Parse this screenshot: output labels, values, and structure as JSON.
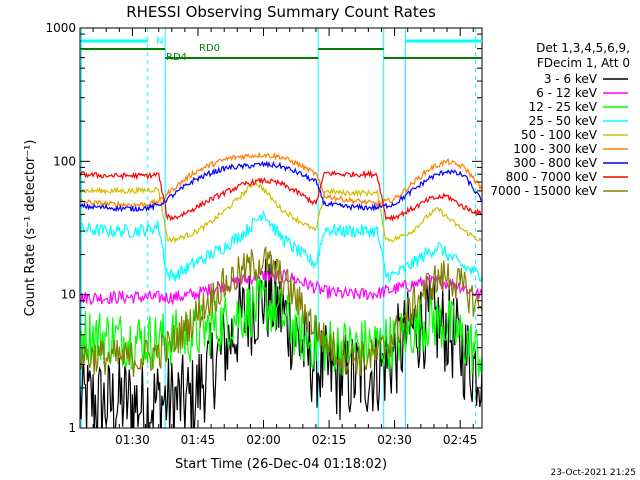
{
  "chart_data": {
    "type": "line",
    "title": "RHESSI Observing Summary Count Rates",
    "xlabel": "Start Time (26-Dec-04 01:18:02)",
    "ylabel": "Count Rate (s⁻¹ detector⁻¹)",
    "x_ticks": [
      "01:30",
      "01:45",
      "02:00",
      "02:15",
      "02:30",
      "02:45"
    ],
    "y_ticks": [
      "1",
      "10",
      "100",
      "1000"
    ],
    "y_scale": "log",
    "ylim": [
      1,
      1000
    ],
    "xlim_minutes": [
      78,
      170
    ],
    "grid": false,
    "legend_position": "right",
    "legend_header": [
      "Det 1,3,4,5,6,9,",
      "FDecim 1, Att 0"
    ],
    "footer_date": "23-Oct-2021 21:25",
    "flags": [
      {
        "label": "N",
        "color": "#00ffff"
      },
      {
        "label": "RD0",
        "color": "#008000"
      },
      {
        "label": "RD4",
        "color": "#008000"
      }
    ],
    "series": [
      {
        "name": "3 - 6 keV",
        "color": "#000000",
        "x": [
          78,
          80,
          84,
          88,
          92,
          96,
          100,
          104,
          106,
          110,
          115,
          120,
          122,
          126,
          130,
          134,
          136,
          140,
          144,
          148,
          150,
          154,
          158,
          162,
          164,
          166,
          168,
          170
        ],
        "y": [
          1.6,
          1.6,
          1.5,
          1.6,
          1.5,
          1.6,
          1.6,
          1.6,
          2.3,
          3.5,
          6.5,
          9.5,
          9.0,
          6.0,
          3.5,
          2.7,
          2.5,
          2.4,
          2.6,
          3.0,
          3.6,
          5.5,
          6.5,
          5.5,
          4.5,
          3.5,
          3.0,
          2.7
        ]
      },
      {
        "name": "6 - 12 keV",
        "color": "#ff00ff",
        "x": [
          78,
          84,
          90,
          96,
          100,
          104,
          110,
          116,
          120,
          126,
          130,
          134,
          140,
          146,
          150,
          156,
          160,
          164,
          168,
          170
        ],
        "y": [
          9.5,
          9.5,
          9.6,
          9.5,
          9.6,
          10.0,
          11.5,
          13.0,
          14.0,
          13.5,
          12.0,
          10.5,
          10.0,
          10.2,
          11.0,
          12.3,
          12.5,
          12.0,
          10.5,
          9.8
        ]
      },
      {
        "name": "12 - 25 keV",
        "color": "#00ff00",
        "x": [
          78,
          84,
          90,
          96,
          100,
          104,
          110,
          116,
          120,
          122,
          126,
          130,
          134,
          140,
          146,
          150,
          154,
          158,
          162,
          166,
          170
        ],
        "y": [
          5.0,
          4.8,
          4.6,
          4.5,
          4.8,
          5.0,
          6.0,
          7.5,
          8.5,
          8.0,
          6.0,
          4.5,
          4.2,
          4.0,
          4.2,
          4.5,
          5.5,
          6.5,
          6.0,
          4.5,
          3.5
        ]
      },
      {
        "name": "25 - 50 keV",
        "color": "#00ffff",
        "x": [
          78,
          84,
          90,
          94,
          96,
          98,
          100,
          104,
          108,
          112,
          116,
          118,
          120,
          122,
          124,
          128,
          132,
          134,
          138,
          142,
          146,
          148,
          150,
          154,
          158,
          160,
          162,
          166,
          170
        ],
        "y": [
          31,
          30,
          30,
          31,
          33,
          14,
          14,
          17,
          20,
          24,
          30,
          35,
          42,
          33,
          27,
          21,
          17,
          31,
          30,
          30,
          30,
          14,
          14,
          17,
          21,
          23,
          20,
          16,
          14
        ]
      },
      {
        "name": "50 - 100 keV",
        "color": "#d0c000",
        "x": [
          78,
          84,
          90,
          94,
          96,
          98,
          100,
          104,
          108,
          112,
          116,
          118,
          120,
          122,
          124,
          128,
          132,
          134,
          138,
          142,
          146,
          148,
          150,
          154,
          158,
          160,
          162,
          166,
          170
        ],
        "y": [
          60,
          60,
          60,
          61,
          62,
          26,
          26,
          29,
          35,
          45,
          60,
          70,
          62,
          52,
          44,
          36,
          30,
          60,
          58,
          58,
          58,
          26,
          26,
          30,
          40,
          44,
          38,
          30,
          25
        ]
      },
      {
        "name": "100 - 300 keV",
        "color": "#ff8000",
        "x": [
          78,
          84,
          90,
          94,
          96,
          100,
          104,
          108,
          112,
          116,
          120,
          124,
          128,
          132,
          134,
          138,
          142,
          146,
          150,
          154,
          158,
          162,
          166,
          170
        ],
        "y": [
          50,
          48,
          47,
          48,
          50,
          65,
          82,
          95,
          105,
          110,
          112,
          108,
          95,
          80,
          55,
          52,
          50,
          48,
          52,
          68,
          88,
          100,
          90,
          62
        ]
      },
      {
        "name": "300 - 800 keV",
        "color": "#0000ff",
        "x": [
          78,
          84,
          90,
          94,
          96,
          100,
          104,
          108,
          112,
          116,
          120,
          124,
          128,
          132,
          134,
          138,
          142,
          146,
          150,
          154,
          158,
          162,
          166,
          170
        ],
        "y": [
          46,
          45,
          44,
          45,
          47,
          58,
          72,
          82,
          90,
          92,
          95,
          92,
          82,
          70,
          48,
          46,
          45,
          45,
          48,
          60,
          75,
          85,
          78,
          50
        ]
      },
      {
        "name": "800 - 7000 keV",
        "color": "#ff0000",
        "x": [
          78,
          84,
          90,
          94,
          96,
          98,
          100,
          104,
          108,
          112,
          116,
          120,
          124,
          128,
          132,
          134,
          138,
          142,
          146,
          148,
          150,
          154,
          158,
          162,
          166,
          170
        ],
        "y": [
          80,
          78,
          78,
          78,
          80,
          38,
          38,
          44,
          52,
          60,
          68,
          72,
          68,
          58,
          48,
          82,
          80,
          80,
          80,
          38,
          38,
          44,
          52,
          55,
          45,
          40
        ]
      },
      {
        "name": "7000 - 15000 keV",
        "color": "#808000",
        "x": [
          78,
          84,
          90,
          94,
          98,
          102,
          106,
          110,
          114,
          118,
          120,
          122,
          126,
          130,
          134,
          138,
          142,
          146,
          150,
          154,
          158,
          162,
          166,
          170
        ],
        "y": [
          3.5,
          3.4,
          3.3,
          3.5,
          4.0,
          5.5,
          8.0,
          11.0,
          14.0,
          17.0,
          18.0,
          16.0,
          11.0,
          7.0,
          4.5,
          3.5,
          3.3,
          3.5,
          5.0,
          8.0,
          12.0,
          14.0,
          11.0,
          7.5
        ]
      }
    ]
  }
}
